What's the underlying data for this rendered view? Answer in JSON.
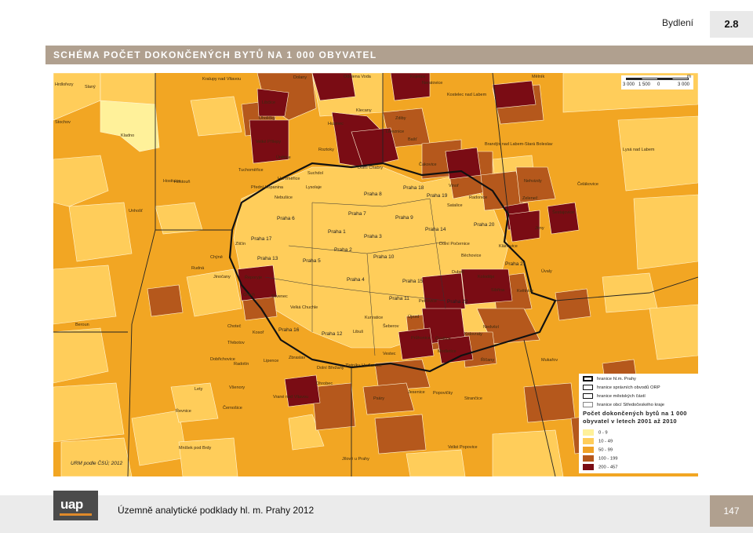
{
  "header": {
    "section": "Bydlení",
    "chapter_number": "2.8"
  },
  "title": "SCHÉMA POČET DOKONČENÝCH BYTŮ NA 1 000 OBYVATEL",
  "map": {
    "source_note": "URM podle ČSÚ; 2012",
    "scale": {
      "unit": "m",
      "ticks": [
        "3 000",
        "1 500",
        "0",
        "3 000"
      ]
    },
    "labels": {
      "praha_districts": [
        "Praha 1",
        "Praha 2",
        "Praha 3",
        "Praha 4",
        "Praha 5",
        "Praha 6",
        "Praha 7",
        "Praha 8",
        "Praha 9",
        "Praha 10",
        "Praha 11",
        "Praha 12",
        "Praha 13",
        "Praha 14",
        "Praha 15",
        "Praha 16",
        "Praha 17",
        "Praha 18",
        "Praha 19",
        "Praha 20",
        "Praha 21",
        "Praha 22"
      ],
      "municipalities": [
        "Hrdlořezy",
        "Hostivice",
        "Dolany",
        "Kojetice",
        "Kostelec nad Labem",
        "Brandýs nad Labem-Stará Boleslav",
        "Odolena Voda",
        "Klecany",
        "Roztoky",
        "Úvaly",
        "Říčany",
        "Jesenice",
        "Černošice",
        "Dobřichovice",
        "Mníšek pod Brdy",
        "Jílové u Prahy",
        "Kladno",
        "Beroun",
        "Lysá nad Labem",
        "Čelákovice",
        "Zdiby",
        "Husinec",
        "Libčice",
        "Zeleneč",
        "Radonice",
        "Šestajovice",
        "Jirny",
        "Klánovice",
        "Sibřina",
        "Květnice",
        "Strančice",
        "Mukařov",
        "Velké Popovice",
        "Průhonice",
        "Vestec",
        "Psáry",
        "Zlatníky-Hodkovice",
        "Dolní Břežany",
        "Ohrobec",
        "Vrané nad Vltavou",
        "Zbraslav",
        "Lipence",
        "Radotín",
        "Řevnice",
        "Lety",
        "Všenory",
        "Rudná",
        "Chýně",
        "Jinočany",
        "Tuchoměřice",
        "Horoměřice",
        "Únětice",
        "Suchdol",
        "Lysolaje",
        "Nebušice",
        "Přední Kopanina",
        "Dolní Chabry",
        "Čakovice",
        "Vinoř",
        "Satalice",
        "Běchovice",
        "Dolní Počernice",
        "Koloděje",
        "Dubeč",
        "Petrovice",
        "Kolovraty",
        "Nedvězí",
        "Libuš",
        "Kunratice",
        "Šeberov",
        "Újezd",
        "Čestlice",
        "Modletice",
        "Popovičky",
        "Hostouň",
        "Unhošť",
        "Stochov",
        "Slaný",
        "Kralupy nad Vltavou",
        "Neratovice",
        "Mělník",
        "Velké Přílepy",
        "Libeznice",
        "Bašť",
        "Nehvizdy",
        "Úholičky",
        "Ořech",
        "Zličín",
        "Řeporyje",
        "Slivenec",
        "Velká Chuchle",
        "Kosoř",
        "Choteč",
        "Třebotov"
      ]
    }
  },
  "legend": {
    "boundaries": [
      {
        "label": "hranice hl.m. Prahy",
        "width": "thick"
      },
      {
        "label": "hranice správních obvodů ORP",
        "width": "medium"
      },
      {
        "label": "hranice městských částí",
        "width": "thin"
      },
      {
        "label": "hranice obcí Středočeského kraje",
        "width": "hair"
      }
    ],
    "title": "Počet dokončených bytů na 1 000 obyvatel v letech 2001 až 2010",
    "classes": [
      {
        "label": "0 - 9",
        "color": "#fff19a"
      },
      {
        "label": "10 - 49",
        "color": "#ffcd5a"
      },
      {
        "label": "50 - 99",
        "color": "#f0a226"
      },
      {
        "label": "100 - 199",
        "color": "#b5581c"
      },
      {
        "label": "200 - 457",
        "color": "#7a0c14"
      }
    ]
  },
  "footer": {
    "text": "Územně analytické podklady hl. m. Prahy 2012",
    "page": "147",
    "logo": "uap"
  }
}
